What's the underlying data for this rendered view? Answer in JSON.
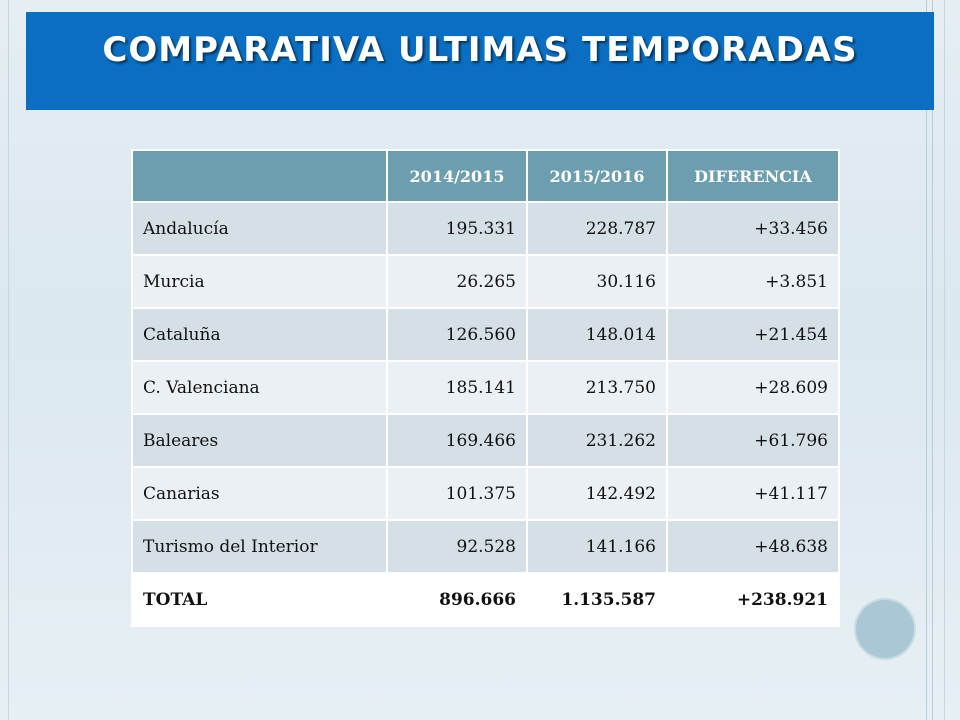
{
  "title": "COMPARATIVA ULTIMAS TEMPORADAS",
  "table": {
    "headers": [
      "",
      "2014/2015",
      "2015/2016",
      "DIFERENCIA"
    ],
    "rows": [
      {
        "region": "Andalucía",
        "y2014_2015": "195.331",
        "y2015_2016": "228.787",
        "diferencia": "+33.456"
      },
      {
        "region": "Murcia",
        "y2014_2015": "26.265",
        "y2015_2016": "30.116",
        "diferencia": "+3.851"
      },
      {
        "region": "Cataluña",
        "y2014_2015": "126.560",
        "y2015_2016": "148.014",
        "diferencia": "+21.454"
      },
      {
        "region": "C. Valenciana",
        "y2014_2015": "185.141",
        "y2015_2016": "213.750",
        "diferencia": "+28.609"
      },
      {
        "region": "Baleares",
        "y2014_2015": "169.466",
        "y2015_2016": "231.262",
        "diferencia": "+61.796"
      },
      {
        "region": "Canarias",
        "y2014_2015": "101.375",
        "y2015_2016": "142.492",
        "diferencia": "+41.117"
      },
      {
        "region": "Turismo del Interior",
        "y2014_2015": "92.528",
        "y2015_2016": "141.166",
        "diferencia": "+48.638"
      }
    ],
    "total": {
      "region": "TOTAL",
      "y2014_2015": "896.666",
      "y2015_2016": "1.135.587",
      "diferencia": "+238.921"
    }
  },
  "colors": {
    "title_bar": "#0a6fc2",
    "header_row": "#6d9eb0",
    "row_dark": "#d5dfe6",
    "row_light": "#ebf0f4",
    "decorative_circle": "#a9c7d4"
  }
}
